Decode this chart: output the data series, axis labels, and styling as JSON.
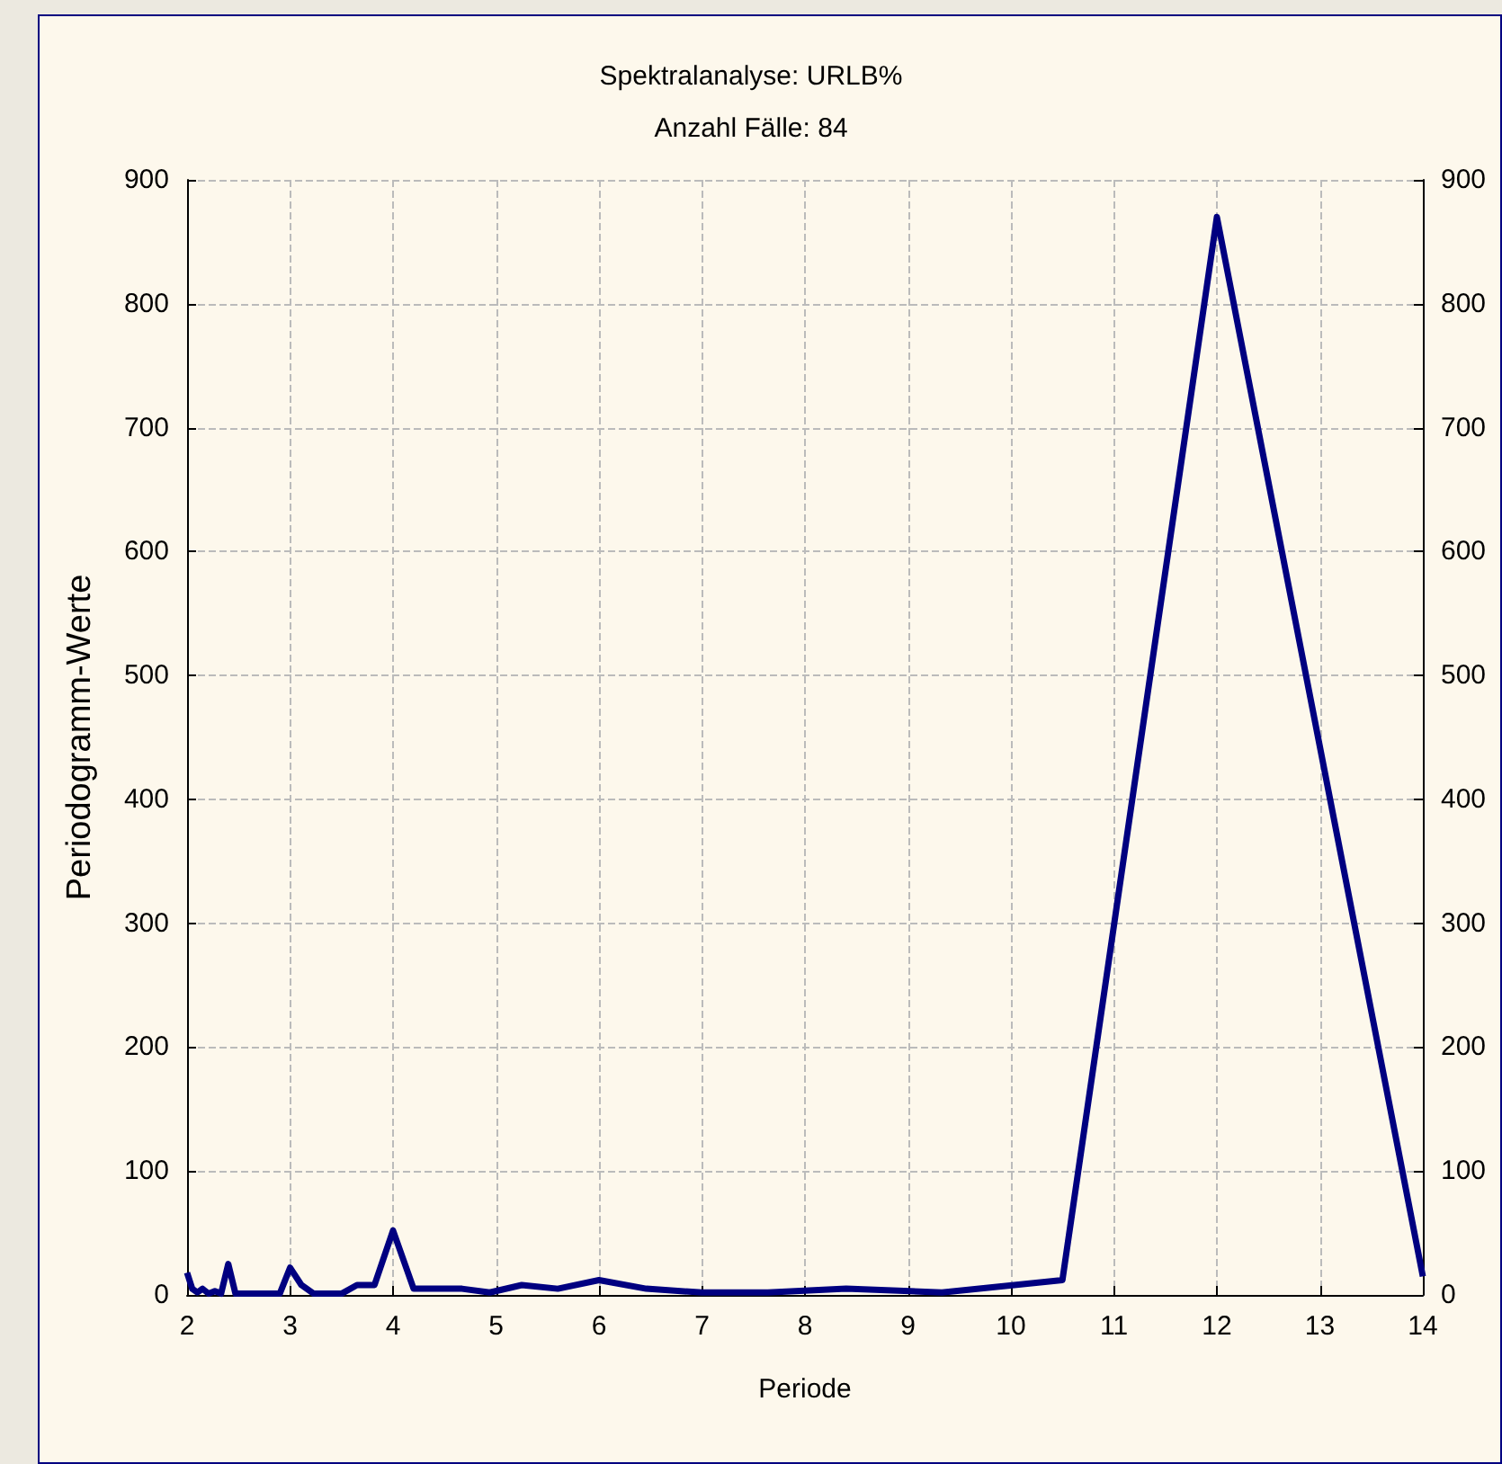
{
  "chart_data": {
    "type": "line",
    "title": "Spektralanalyse: URLB%",
    "subtitle": "Anzahl Fälle: 84",
    "xlabel": "Periode",
    "ylabel": "Periodogramm-Werte",
    "x": [
      2,
      2.05,
      2.1,
      2.15,
      2.21,
      2.27,
      2.33,
      2.4,
      2.47,
      2.545,
      2.625,
      2.71,
      2.8,
      2.9,
      3,
      3.11,
      3.23,
      3.36,
      3.5,
      3.65,
      3.82,
      4,
      4.2,
      4.42,
      4.67,
      4.94,
      5.25,
      5.6,
      6,
      6.46,
      7,
      7.64,
      8.4,
      9.33,
      10.5,
      12,
      14
    ],
    "series": [
      {
        "color": "#000080",
        "values": [
          18,
          5,
          2,
          5,
          1,
          3,
          1,
          25,
          1,
          1,
          1,
          1,
          1,
          1,
          22,
          8,
          1,
          1,
          1,
          8,
          8,
          52,
          5,
          5,
          5,
          2,
          8,
          5,
          12,
          5,
          2,
          2,
          5,
          2,
          12,
          870,
          15
        ]
      }
    ],
    "xlim": [
      2,
      14
    ],
    "xticks": [
      2,
      3,
      4,
      5,
      6,
      7,
      8,
      9,
      10,
      11,
      12,
      13,
      14
    ],
    "ylim": [
      0,
      900
    ],
    "yticks": [
      0,
      100,
      200,
      300,
      400,
      500,
      600,
      700,
      800,
      900
    ],
    "y2lim": [
      0,
      900
    ],
    "y2ticks": [
      0,
      100,
      200,
      300,
      400,
      500,
      600,
      700,
      800,
      900
    ],
    "grid": true,
    "marker": "none",
    "line_style": "solid"
  }
}
